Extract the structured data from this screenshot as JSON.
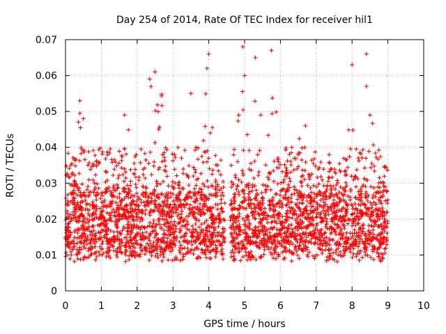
{
  "chart_data": {
    "type": "scatter",
    "title": "Day 254 of 2014, Rate Of TEC Index for receiver hil1",
    "xlabel": "GPS time / hours",
    "ylabel": "ROTI / TECUs",
    "xlim": [
      0,
      10
    ],
    "ylim": [
      0,
      0.07
    ],
    "xticks": [
      "0",
      "1",
      "2",
      "3",
      "4",
      "5",
      "6",
      "7",
      "8",
      "9",
      "10"
    ],
    "yticks": [
      "0",
      "0.01",
      "0.02",
      "0.03",
      "0.04",
      "0.05",
      "0.06",
      "0.07"
    ],
    "grid": true,
    "marker": "+",
    "color": "#ff0000",
    "x_coverage": [
      0,
      9
    ],
    "data_gap_hours": [
      4.45,
      4.6
    ],
    "typical_range": [
      0.008,
      0.03
    ],
    "series": [
      {
        "name": "hil1 ROTI",
        "notable_points": [
          {
            "x": 0.4,
            "y": 0.053
          },
          {
            "x": 0.5,
            "y": 0.048
          },
          {
            "x": 1.65,
            "y": 0.049
          },
          {
            "x": 2.35,
            "y": 0.059
          },
          {
            "x": 2.5,
            "y": 0.061
          },
          {
            "x": 3.5,
            "y": 0.055
          },
          {
            "x": 3.95,
            "y": 0.062
          },
          {
            "x": 4.0,
            "y": 0.066
          },
          {
            "x": 4.95,
            "y": 0.068
          },
          {
            "x": 5.0,
            "y": 0.06
          },
          {
            "x": 5.3,
            "y": 0.065
          },
          {
            "x": 5.75,
            "y": 0.067
          },
          {
            "x": 8.0,
            "y": 0.063
          },
          {
            "x": 8.4,
            "y": 0.066
          },
          {
            "x": 8.4,
            "y": 0.057
          },
          {
            "x": 8.5,
            "y": 0.049
          },
          {
            "x": 0.15,
            "y": 0.035
          },
          {
            "x": 2.6,
            "y": 0.045
          },
          {
            "x": 5.45,
            "y": 0.049
          },
          {
            "x": 6.7,
            "y": 0.046
          }
        ]
      }
    ]
  }
}
